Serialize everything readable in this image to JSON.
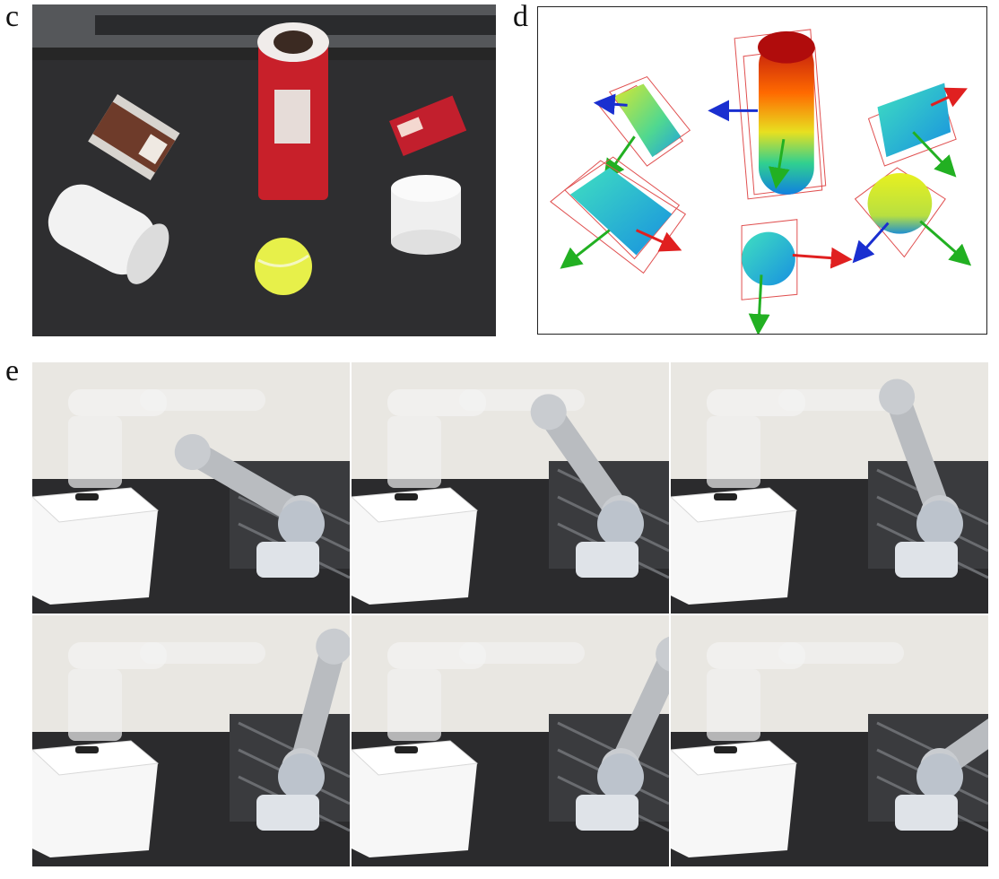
{
  "figure": {
    "panels": [
      {
        "id": "c",
        "label": "c",
        "kind": "photo-tabletop-objects"
      },
      {
        "id": "d",
        "label": "d",
        "kind": "point-cloud-pose-estimation"
      },
      {
        "id": "e",
        "label": "e",
        "kind": "robot-pick-and-place-sequence",
        "frames": 6
      }
    ]
  },
  "panel_c": {
    "objects": [
      "cereal-box",
      "chips-can",
      "jello-box",
      "white-cylinder-lying",
      "white-cylinder-standing",
      "tennis-ball"
    ]
  },
  "panel_d": {
    "axis_colors": {
      "x": "#e02020",
      "y": "#22b022",
      "z": "#1a2fd0"
    },
    "objects": [
      "box-small",
      "cylinder-lying",
      "chips-can",
      "jello-box",
      "cylinder-standing",
      "ball"
    ]
  },
  "panel_e": {
    "frames": [
      "frame-1",
      "frame-2",
      "frame-3",
      "frame-4",
      "frame-5",
      "frame-6"
    ]
  }
}
